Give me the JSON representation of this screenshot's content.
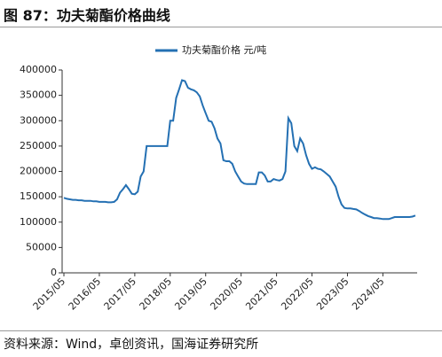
{
  "title": "图 87：功夫菊酯价格曲线",
  "source": "资料来源：Wind，卓创资讯，国海证券研究所",
  "chart_data": {
    "type": "line",
    "x": [
      "2015/05",
      "2015/06",
      "2015/07",
      "2015/08",
      "2015/09",
      "2015/10",
      "2015/11",
      "2015/12",
      "2016/01",
      "2016/02",
      "2016/03",
      "2016/04",
      "2016/05",
      "2016/06",
      "2016/07",
      "2016/08",
      "2016/09",
      "2016/10",
      "2016/11",
      "2016/12",
      "2017/01",
      "2017/02",
      "2017/03",
      "2017/04",
      "2017/05",
      "2017/06",
      "2017/07",
      "2017/08",
      "2017/09",
      "2017/10",
      "2017/11",
      "2017/12",
      "2018/01",
      "2018/02",
      "2018/03",
      "2018/04",
      "2018/05",
      "2018/06",
      "2018/07",
      "2018/08",
      "2018/09",
      "2018/10",
      "2018/11",
      "2018/12",
      "2019/01",
      "2019/02",
      "2019/03",
      "2019/04",
      "2019/05",
      "2019/06",
      "2019/07",
      "2019/08",
      "2019/09",
      "2019/10",
      "2019/11",
      "2019/12",
      "2020/01",
      "2020/02",
      "2020/03",
      "2020/04",
      "2020/05",
      "2020/06",
      "2020/07",
      "2020/08",
      "2020/09",
      "2020/10",
      "2020/11",
      "2020/12",
      "2021/01",
      "2021/02",
      "2021/03",
      "2021/04",
      "2021/05",
      "2021/06",
      "2021/07",
      "2021/08",
      "2021/09",
      "2021/10",
      "2021/11",
      "2021/12",
      "2022/01",
      "2022/02",
      "2022/03",
      "2022/04",
      "2022/05",
      "2022/06",
      "2022/07",
      "2022/08",
      "2022/09",
      "2022/10",
      "2022/11",
      "2022/12",
      "2023/01",
      "2023/02",
      "2023/03",
      "2023/04",
      "2023/05",
      "2023/06",
      "2023/07",
      "2023/08",
      "2023/09",
      "2023/10",
      "2023/11",
      "2023/12",
      "2024/01",
      "2024/02",
      "2024/03",
      "2024/04",
      "2024/05",
      "2024/06",
      "2024/07",
      "2024/08",
      "2024/09",
      "2024/10",
      "2024/11",
      "2024/12",
      "2025/01",
      "2025/02",
      "2025/03",
      "2025/04"
    ],
    "series": [
      {
        "name": "功夫菊酯价格 元/吨",
        "color": "#2470b3",
        "values": [
          148000,
          146000,
          145000,
          144000,
          144000,
          143000,
          143000,
          142000,
          142000,
          142000,
          141000,
          141000,
          140000,
          140000,
          140000,
          139000,
          139000,
          140000,
          145000,
          158000,
          165000,
          173000,
          165000,
          156000,
          155000,
          160000,
          190000,
          200000,
          250000,
          250000,
          250000,
          250000,
          250000,
          250000,
          250000,
          250000,
          300000,
          300000,
          345000,
          362000,
          380000,
          378000,
          365000,
          362000,
          360000,
          356000,
          348000,
          330000,
          315000,
          300000,
          298000,
          285000,
          265000,
          255000,
          222000,
          220000,
          220000,
          215000,
          200000,
          190000,
          180000,
          176000,
          175000,
          175000,
          175000,
          175000,
          198000,
          198000,
          192000,
          180000,
          180000,
          185000,
          183000,
          182000,
          185000,
          200000,
          305000,
          295000,
          250000,
          240000,
          265000,
          255000,
          232000,
          215000,
          205000,
          208000,
          205000,
          204000,
          200000,
          195000,
          190000,
          180000,
          170000,
          150000,
          135000,
          128000,
          127000,
          127000,
          126000,
          125000,
          122000,
          118000,
          115000,
          112000,
          110000,
          108000,
          108000,
          107000,
          106000,
          106000,
          106000,
          108000,
          110000,
          110000,
          110000,
          110000,
          110000,
          110000,
          111000,
          113000
        ]
      }
    ],
    "xticks": [
      "2015/05",
      "2016/05",
      "2017/05",
      "2018/05",
      "2019/05",
      "2020/05",
      "2021/05",
      "2022/05",
      "2023/05",
      "2024/05"
    ],
    "ylim": [
      0,
      400000
    ],
    "yticks": [
      0,
      50000,
      100000,
      150000,
      200000,
      250000,
      300000,
      350000,
      400000
    ]
  }
}
